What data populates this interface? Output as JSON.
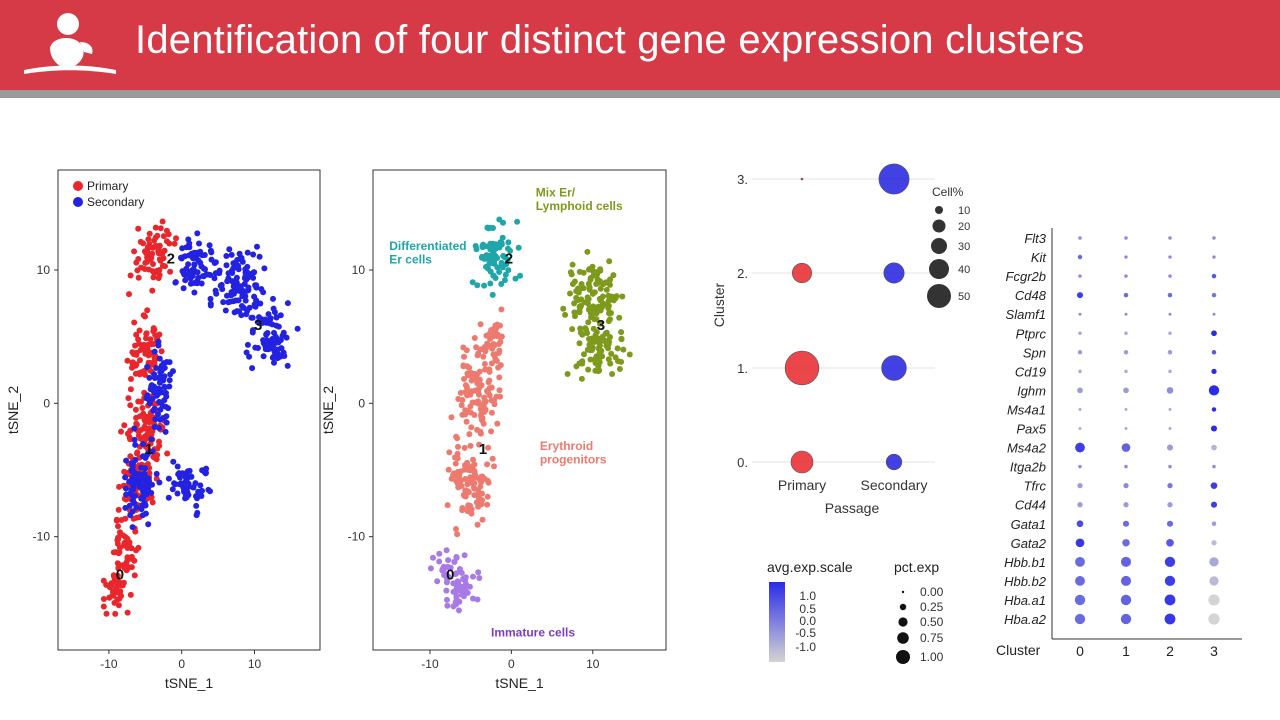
{
  "slide": {
    "title": "Identification of four distinct gene expression clusters",
    "banner_color": "#d63a47",
    "stripe_color": "#9a9a9a",
    "logo_icon": "child-silhouette-logo"
  },
  "chart_data": [
    {
      "type": "scatter",
      "panel": "tsne-by-passage",
      "xlabel": "tSNE_1",
      "ylabel": "tSNE_2",
      "xlim": [
        -17,
        19
      ],
      "ylim": [
        -18.5,
        17.5
      ],
      "xticks": [
        -10,
        0,
        10
      ],
      "yticks": [
        10,
        0,
        -10
      ],
      "grid": false,
      "legend_position": "top-left",
      "series": [
        {
          "name": "Primary",
          "color": "#e8262b",
          "regions": [
            [
              -4,
              11,
              3,
              2.5
            ],
            [
              -5,
              4,
              2.5,
              3
            ],
            [
              -5,
              -2,
              3,
              3
            ],
            [
              -6,
              -6,
              2.5,
              3
            ],
            [
              -8,
              -11,
              2,
              3
            ],
            [
              -9,
              -14,
              2,
              2
            ]
          ]
        },
        {
          "name": "Secondary",
          "color": "#2222e0",
          "regions": [
            [
              2,
              10,
              3,
              2.5
            ],
            [
              8,
              9,
              4,
              3
            ],
            [
              12,
              5,
              3.5,
              2.5
            ],
            [
              -3,
              1,
              2,
              4
            ],
            [
              -6,
              -6,
              2.5,
              3.5
            ],
            [
              1,
              -6,
              3,
              2
            ]
          ]
        }
      ],
      "cluster_labels": [
        {
          "label": "0",
          "x": -8.5,
          "y": -13.2
        },
        {
          "label": "1",
          "x": -4.5,
          "y": -3.8
        },
        {
          "label": "2",
          "x": -1.5,
          "y": 10.5
        },
        {
          "label": "3",
          "x": 10.5,
          "y": 5.5
        }
      ]
    },
    {
      "type": "scatter",
      "panel": "tsne-by-cluster",
      "xlabel": "tSNE_1",
      "ylabel": "tSNE_2",
      "xlim": [
        -17,
        19
      ],
      "ylim": [
        -18.5,
        17.5
      ],
      "xticks": [
        -10,
        0,
        10
      ],
      "yticks": [
        10,
        0,
        -10
      ],
      "grid": false,
      "series": [
        {
          "cluster": "0",
          "annotation": "Immature cells",
          "color": "#a77ae6",
          "regions": [
            [
              -7,
              -13.5,
              3,
              2.5
            ]
          ]
        },
        {
          "cluster": "1",
          "annotation": "Erythroid progenitors",
          "color": "#ec7a6e",
          "regions": [
            [
              -4,
              1,
              3,
              4
            ],
            [
              -5,
              -6,
              3,
              3.5
            ],
            [
              -2,
              5,
              2,
              2
            ]
          ]
        },
        {
          "cluster": "2",
          "annotation": "Differentiated Er cells",
          "color": "#1fa6aa",
          "regions": [
            [
              -2,
              11,
              3,
              3
            ]
          ]
        },
        {
          "cluster": "3",
          "annotation": "Mix Er/ Lymphoid cells",
          "color": "#7e9a1c",
          "regions": [
            [
              10,
              8,
              4,
              3
            ],
            [
              11,
              4,
              3.5,
              2.5
            ]
          ]
        }
      ],
      "cluster_labels": [
        {
          "label": "0",
          "x": -7.5,
          "y": -13.2
        },
        {
          "label": "1",
          "x": -3.5,
          "y": -3.8
        },
        {
          "label": "2",
          "x": -0.3,
          "y": 10.5
        },
        {
          "label": "3",
          "x": 11,
          "y": 5.5
        }
      ],
      "annotations": [
        {
          "text": "Mix Er/",
          "color": "#7e9a1c",
          "x": 3,
          "y": 15.5
        },
        {
          "text": "Lymphoid cells",
          "color": "#7e9a1c",
          "x": 3,
          "y": 14.5
        },
        {
          "text": "Differentiated",
          "color": "#1fa6aa",
          "x": -15,
          "y": 11.5
        },
        {
          "text": "Er cells",
          "color": "#1fa6aa",
          "x": -15,
          "y": 10.5
        },
        {
          "text": "Erythroid",
          "color": "#ec7a6e",
          "x": 3.5,
          "y": -3.5
        },
        {
          "text": "progenitors",
          "color": "#ec7a6e",
          "x": 3.5,
          "y": -4.5
        },
        {
          "text": "Immature cells",
          "color": "#7b3ec2",
          "x": -2.5,
          "y": -17.5
        }
      ]
    },
    {
      "type": "scatter",
      "panel": "cluster-by-passage-dotplot",
      "xlabel": "Passage",
      "ylabel": "Cluster",
      "categories_x": [
        "Primary",
        "Secondary"
      ],
      "categories_y": [
        "3.",
        "2.",
        "1.",
        "0."
      ],
      "size_legend_title": "Cell%",
      "size_legend_values": [
        "10",
        "20",
        "30",
        "40",
        "50"
      ],
      "points": [
        {
          "cluster": "3",
          "passage": "Primary",
          "cell_pct": 0,
          "color": "#e8262b"
        },
        {
          "cluster": "3",
          "passage": "Secondary",
          "cell_pct": 45,
          "color": "#2222e0"
        },
        {
          "cluster": "2",
          "passage": "Primary",
          "cell_pct": 14,
          "color": "#e8262b"
        },
        {
          "cluster": "2",
          "passage": "Secondary",
          "cell_pct": 16,
          "color": "#2222e0"
        },
        {
          "cluster": "1",
          "passage": "Primary",
          "cell_pct": 60,
          "color": "#e8262b"
        },
        {
          "cluster": "1",
          "passage": "Secondary",
          "cell_pct": 27,
          "color": "#2222e0"
        },
        {
          "cluster": "0",
          "passage": "Primary",
          "cell_pct": 20,
          "color": "#e8262b"
        },
        {
          "cluster": "0",
          "passage": "Secondary",
          "cell_pct": 7,
          "color": "#2222e0"
        }
      ]
    },
    {
      "type": "heatmap",
      "panel": "gene-expression-dotplot",
      "xlabel": "Cluster",
      "clusters": [
        "0",
        "1",
        "2",
        "3"
      ],
      "genes": [
        "Flt3",
        "Kit",
        "Fcgr2b",
        "Cd48",
        "Slamf1",
        "Ptprc",
        "Spn",
        "Cd19",
        "Ighm",
        "Ms4a1",
        "Pax5",
        "Ms4a2",
        "Itga2b",
        "Tfrc",
        "Cd44",
        "Gata1",
        "Gata2",
        "Hbb.b1",
        "Hbb.b2",
        "Hba.a1",
        "Hba.a2"
      ],
      "pct_exp": [
        [
          0.02,
          0.02,
          0.02,
          0.02
        ],
        [
          0.05,
          0.02,
          0.02,
          0.02
        ],
        [
          0.02,
          0.02,
          0.02,
          0.05
        ],
        [
          0.12,
          0.05,
          0.05,
          0.05
        ],
        [
          0.01,
          0.01,
          0.01,
          0.01
        ],
        [
          0.02,
          0.02,
          0.02,
          0.1
        ],
        [
          0.05,
          0.05,
          0.05,
          0.05
        ],
        [
          0.02,
          0.02,
          0.02,
          0.08
        ],
        [
          0.1,
          0.1,
          0.15,
          0.45
        ],
        [
          0.01,
          0.01,
          0.01,
          0.05
        ],
        [
          0.01,
          0.01,
          0.01,
          0.12
        ],
        [
          0.4,
          0.3,
          0.12,
          0.1
        ],
        [
          0.02,
          0.02,
          0.02,
          0.02
        ],
        [
          0.08,
          0.08,
          0.08,
          0.15
        ],
        [
          0.08,
          0.08,
          0.08,
          0.12
        ],
        [
          0.15,
          0.12,
          0.12,
          0.05
        ],
        [
          0.3,
          0.2,
          0.22,
          0.08
        ],
        [
          0.4,
          0.42,
          0.45,
          0.35
        ],
        [
          0.4,
          0.42,
          0.45,
          0.35
        ],
        [
          0.45,
          0.45,
          0.5,
          0.55
        ],
        [
          0.45,
          0.45,
          0.5,
          0.55
        ]
      ],
      "avg_exp_scale": [
        [
          0.0,
          0.0,
          0.0,
          0.0
        ],
        [
          0.5,
          0.0,
          0.0,
          0.0
        ],
        [
          0.0,
          0.0,
          0.0,
          0.8
        ],
        [
          1.2,
          0.5,
          0.5,
          0.3
        ],
        [
          0.0,
          0.0,
          0.0,
          0.0
        ],
        [
          -0.5,
          -0.5,
          -0.5,
          1.5
        ],
        [
          -0.3,
          -0.3,
          -0.3,
          0.8
        ],
        [
          -0.5,
          -0.5,
          -0.5,
          1.5
        ],
        [
          -0.3,
          -0.3,
          -0.1,
          1.5
        ],
        [
          -0.5,
          -0.5,
          -0.5,
          1.5
        ],
        [
          -0.5,
          -0.5,
          -0.5,
          1.5
        ],
        [
          1.2,
          0.6,
          -0.3,
          -0.7
        ],
        [
          0.0,
          0.0,
          0.0,
          0.0
        ],
        [
          -0.3,
          0.0,
          0.3,
          1.2
        ],
        [
          -0.3,
          -0.3,
          -0.3,
          1.2
        ],
        [
          1.0,
          0.5,
          0.5,
          -0.3
        ],
        [
          1.3,
          0.5,
          0.8,
          -0.8
        ],
        [
          0.5,
          0.6,
          1.2,
          -0.5
        ],
        [
          0.5,
          0.6,
          1.2,
          -0.8
        ],
        [
          0.5,
          0.6,
          1.3,
          -1.2
        ],
        [
          0.5,
          0.6,
          1.3,
          -1.2
        ]
      ],
      "color_legend_title": "avg.exp.scale",
      "color_legend_ticks": [
        "1.0",
        "0.5",
        "0.0",
        "-0.5",
        "-1.0"
      ],
      "color_range": [
        -1.2,
        1.5
      ],
      "color_high": "#2b2be8",
      "color_low": "#d4d4d4",
      "size_legend_title": "pct.exp",
      "size_legend_values": [
        "0.00",
        "0.25",
        "0.50",
        "0.75",
        "1.00"
      ]
    }
  ]
}
